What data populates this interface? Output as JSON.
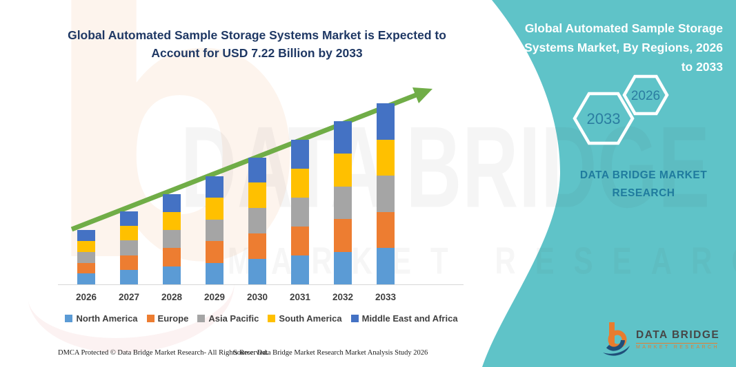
{
  "header": {
    "title": "Global Automated Sample Storage Systems Market is Expected to Account for USD 7.22 Billion by 2033"
  },
  "side_panel": {
    "title": "Global Automated Sample Storage Systems Market, By Regions, 2026 to 2033",
    "hexagons": [
      {
        "label": "2033"
      },
      {
        "label": "2026"
      }
    ],
    "brand": "DATA BRIDGE MARKET RESEARCH"
  },
  "chart_data": {
    "type": "bar",
    "stacked": true,
    "title": "Global Automated Sample Storage Systems Market, By Regions, 2026 to 2033",
    "unit": "USD Billion",
    "categories": [
      "2026",
      "2027",
      "2028",
      "2029",
      "2030",
      "2031",
      "2032",
      "2033"
    ],
    "series": [
      {
        "name": "North America",
        "color": "#5b9bd5",
        "values": [
          0.43,
          0.58,
          0.72,
          0.86,
          1.01,
          1.15,
          1.3,
          1.44
        ]
      },
      {
        "name": "Europe",
        "color": "#ed7d31",
        "values": [
          0.43,
          0.58,
          0.72,
          0.86,
          1.01,
          1.15,
          1.3,
          1.44
        ]
      },
      {
        "name": "Asia Pacific",
        "color": "#a5a5a5",
        "values": [
          0.43,
          0.58,
          0.72,
          0.86,
          1.01,
          1.15,
          1.3,
          1.44
        ]
      },
      {
        "name": "South America",
        "color": "#ffc000",
        "values": [
          0.43,
          0.58,
          0.72,
          0.86,
          1.01,
          1.15,
          1.3,
          1.44
        ]
      },
      {
        "name": "Middle East and Africa",
        "color": "#4472c4",
        "values": [
          0.43,
          0.58,
          0.72,
          0.86,
          1.01,
          1.15,
          1.3,
          1.44
        ]
      }
    ],
    "totals_estimated": [
      2.14,
      2.9,
      3.6,
      4.31,
      5.07,
      5.76,
      6.5,
      7.22
    ],
    "final_value_label": "USD 7.22 Billion by 2033",
    "ylim": [
      0,
      7.5
    ],
    "gridlines": false,
    "legend_position": "bottom",
    "trend_arrow": true
  },
  "watermarks": {
    "letter": "b",
    "main": "DATA BRIDGE",
    "sub": "MARKET RESEARCH"
  },
  "footer": {
    "left": "DMCA Protected © Data Bridge Market Research-  All Rights Reserved.",
    "source": "Source: Data Bridge Market Research  Market Analysis Study 2026"
  },
  "logo": {
    "name": "DATA BRIDGE",
    "sub": "MARKET RESEARCH"
  },
  "colors": {
    "teal": "#5fc3c8",
    "navy": "#1f3864",
    "arrow_green": "#70ad47",
    "hex_text": "#2b7da1",
    "panel_text": "#1f7b9e",
    "axis_label": "#404040"
  }
}
